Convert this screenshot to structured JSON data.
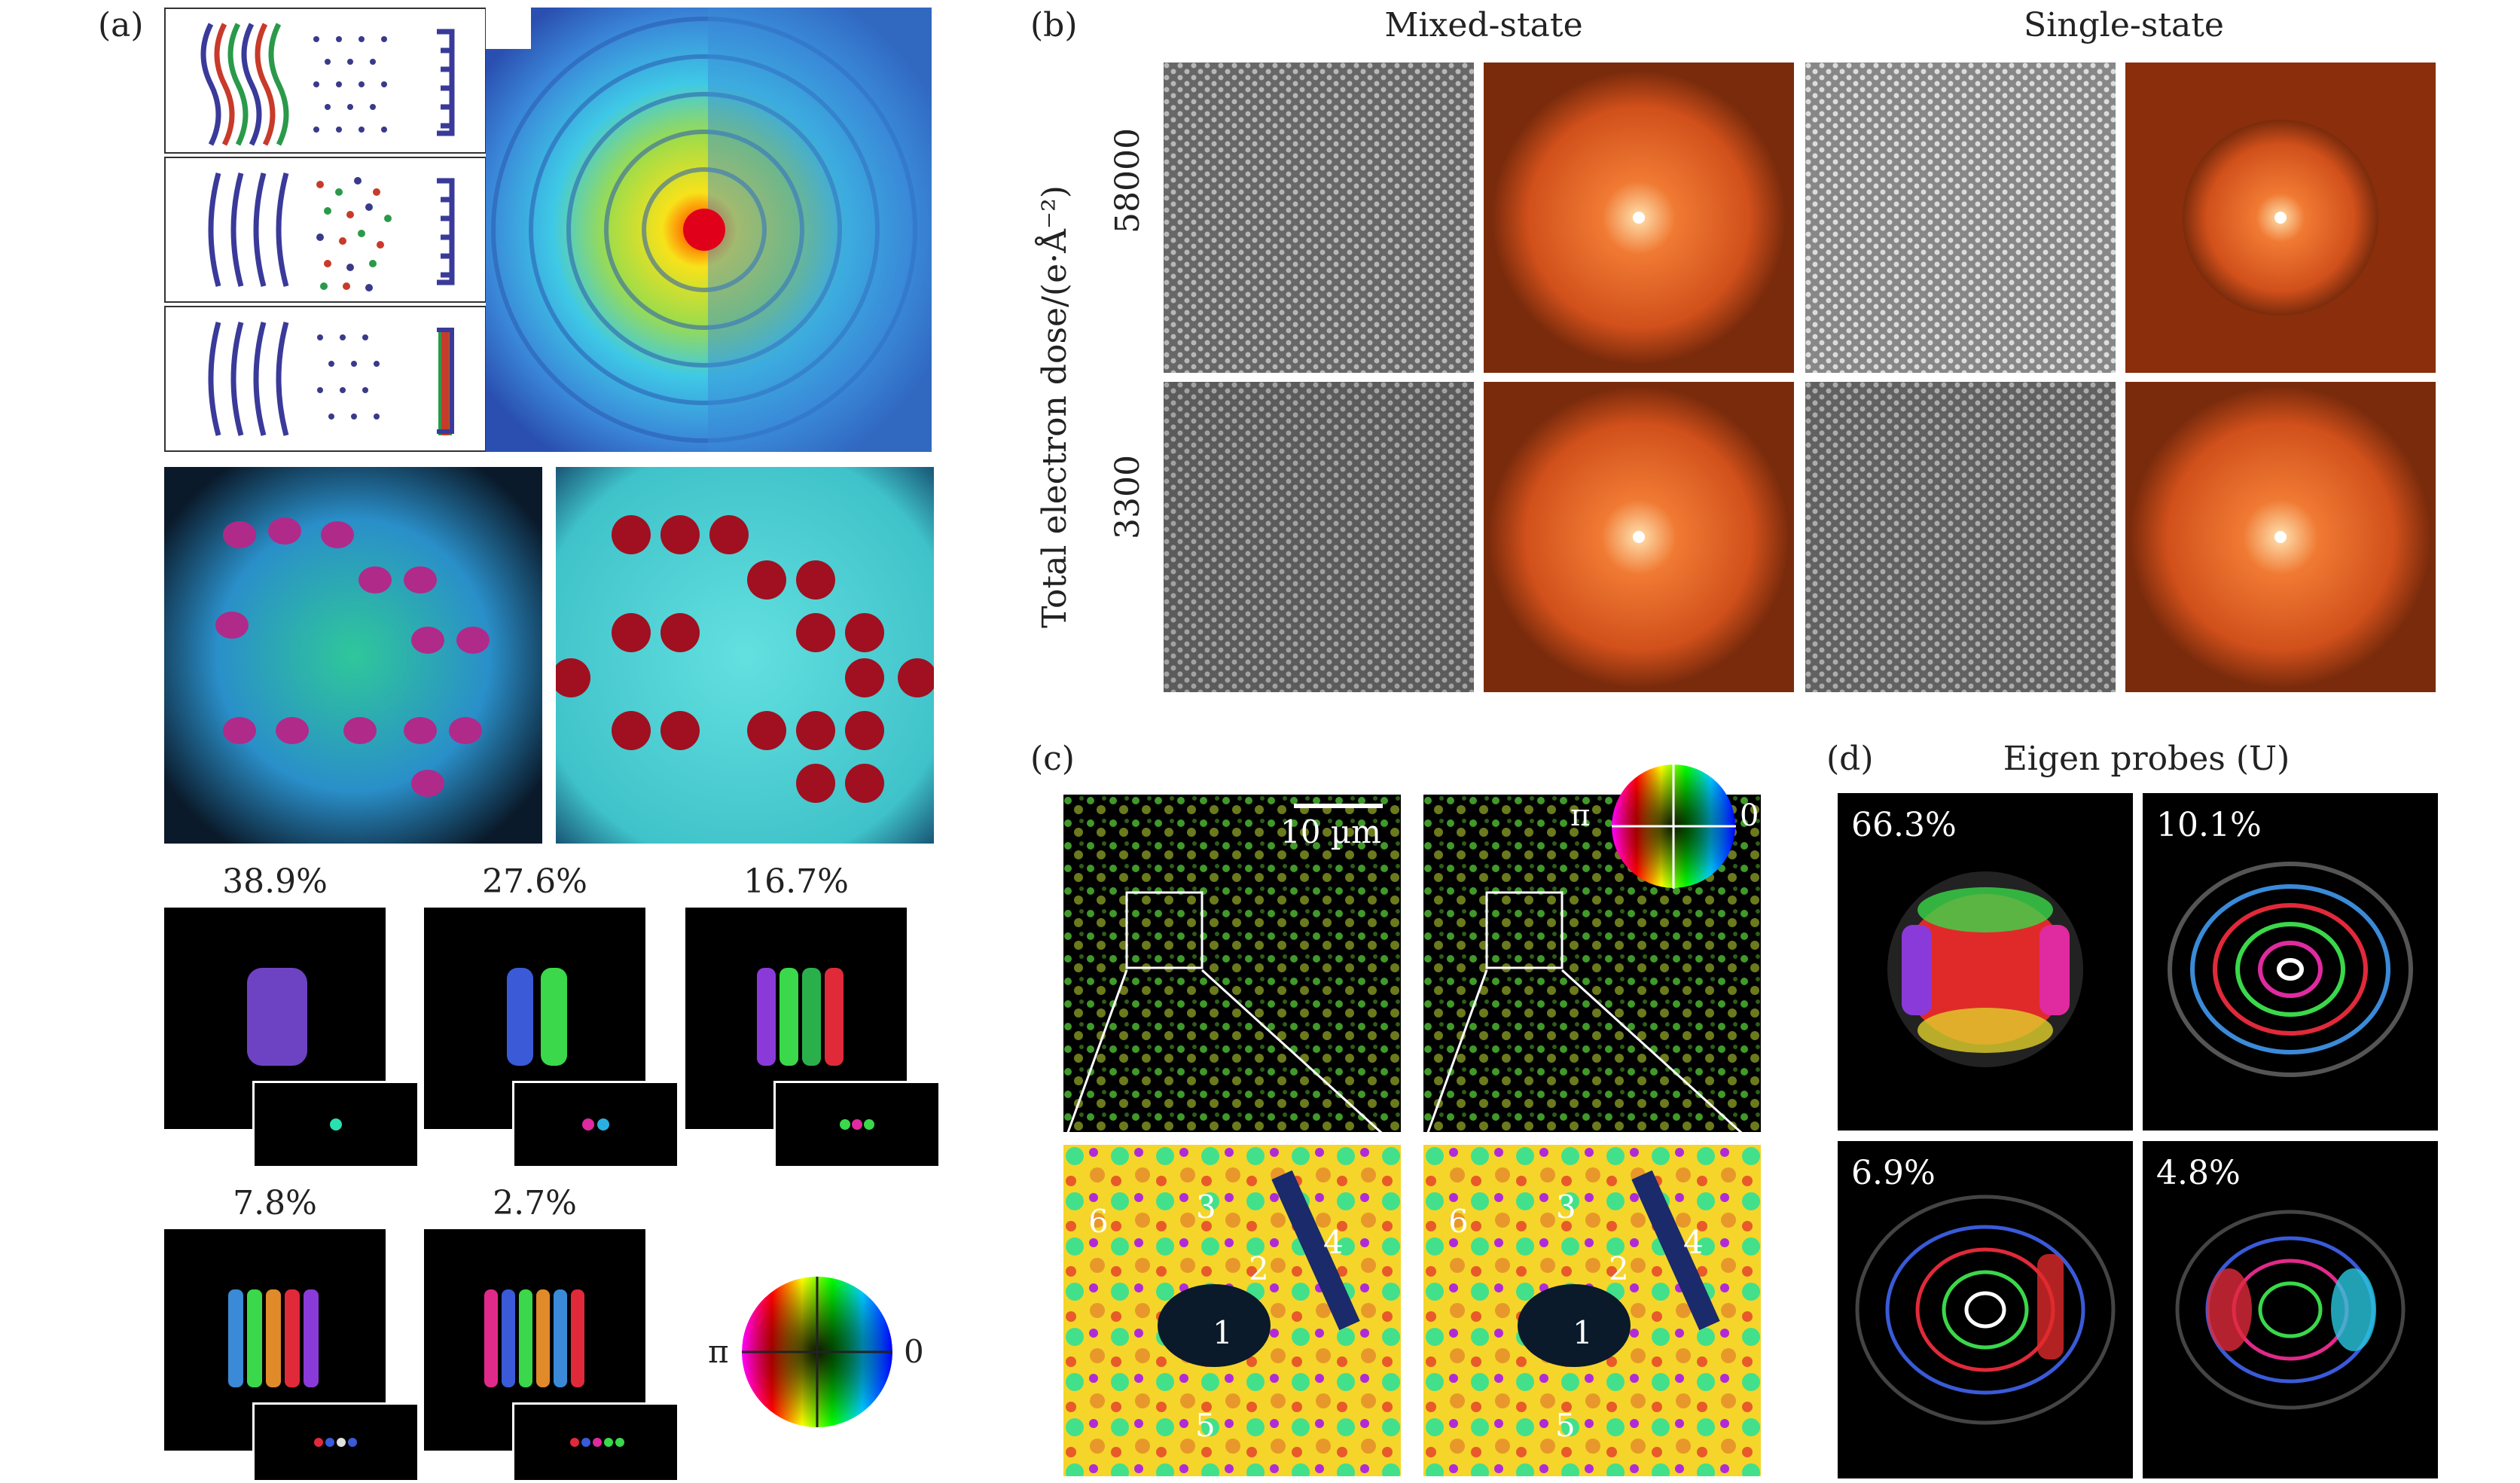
{
  "figure": {
    "panel_a": {
      "label": "(a)",
      "mode_percentages": [
        "38.9%",
        "27.6%",
        "16.7%",
        "7.8%",
        "2.7%"
      ],
      "wheel_left": "π",
      "wheel_right": "0"
    },
    "panel_b": {
      "label": "(b)",
      "col_mixed": "Mixed-state",
      "col_single": "Single-state",
      "y_axis_label": "Total electron dose/(e·Å⁻²)",
      "row_top": "58000",
      "row_bottom": "3300"
    },
    "panel_c": {
      "label": "(c)",
      "scale_bar": "10 µm",
      "wheel_left": "π",
      "wheel_right": "0",
      "regions": [
        "1",
        "2",
        "3",
        "4",
        "5",
        "6"
      ]
    },
    "panel_d": {
      "label": "(d)",
      "title": "Eigen probes (U)",
      "percentages": [
        "66.3%",
        "10.1%",
        "6.9%",
        "4.8%"
      ]
    }
  }
}
